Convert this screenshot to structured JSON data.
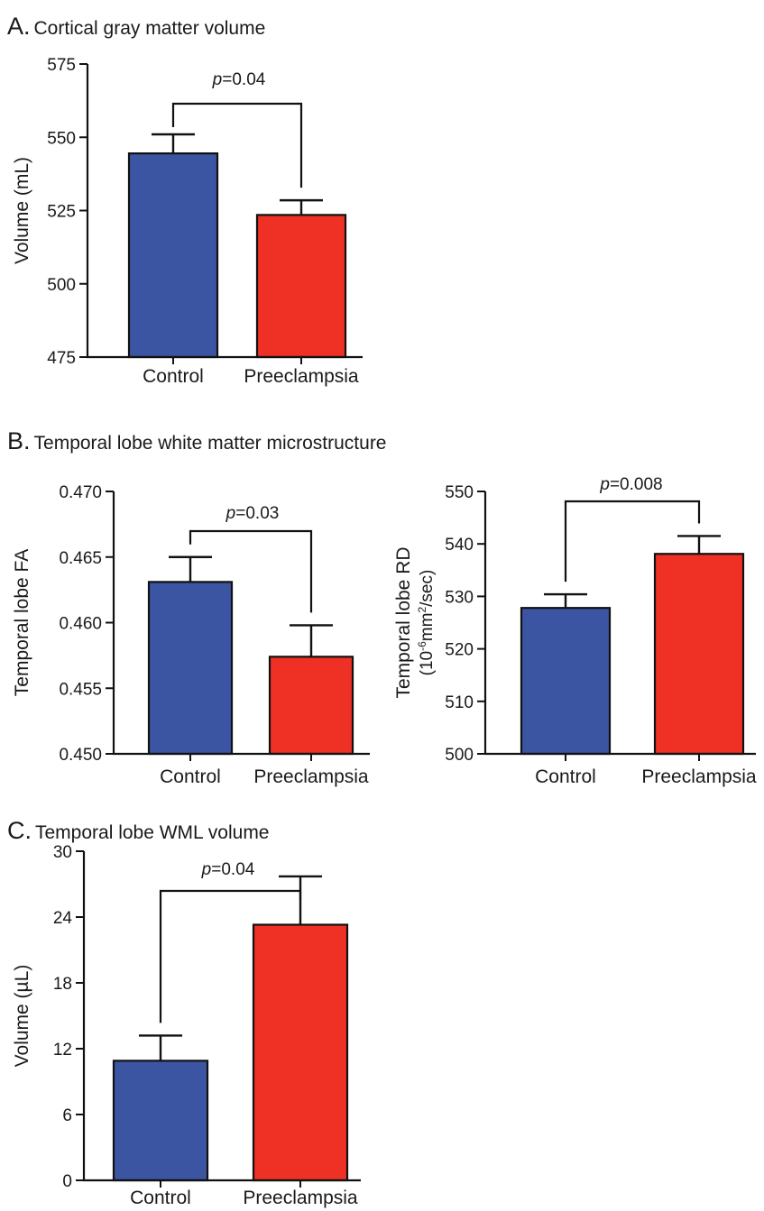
{
  "panels": [
    {
      "letter": "A.",
      "title": "Cortical gray matter volume"
    },
    {
      "letter": "B.",
      "title": "Temporal lobe white matter microstructure"
    },
    {
      "letter": "C.",
      "title": "Temporal lobe WML volume"
    }
  ],
  "colors": {
    "control": "#3b55a3",
    "preeclampsia": "#ee3124",
    "axis": "#1a1a1a"
  },
  "chart_data": [
    {
      "type": "bar",
      "panel": "A.",
      "ylabel": "Volume (mL)",
      "categories": [
        "Control",
        "Preeclampsia"
      ],
      "values": [
        544.5,
        523.5
      ],
      "errors": [
        6.5,
        5.0
      ],
      "ylim": [
        475,
        575
      ],
      "yticks": [
        475,
        500,
        525,
        550,
        575
      ],
      "ytick_labels": [
        "475",
        "500",
        "525",
        "550",
        "575"
      ],
      "annotation": {
        "italic": "p",
        "text": "=0.04"
      }
    },
    {
      "type": "bar",
      "panel": "B.",
      "ylabel": "Temporal lobe FA",
      "categories": [
        "Control",
        "Preeclampsia"
      ],
      "values": [
        0.4631,
        0.4574
      ],
      "errors": [
        0.0019,
        0.0024
      ],
      "ylim": [
        0.45,
        0.47
      ],
      "yticks": [
        0.45,
        0.455,
        0.46,
        0.465,
        0.47
      ],
      "ytick_labels": [
        "0.450",
        "0.455",
        "0.460",
        "0.465",
        "0.470"
      ],
      "annotation": {
        "italic": "p",
        "text": "=0.03"
      }
    },
    {
      "type": "bar",
      "panel": "B.",
      "ylabel": "Temporal lobe RD",
      "ylabel2": "(10-6mm2/sec)",
      "categories": [
        "Control",
        "Preeclampsia"
      ],
      "values": [
        527.8,
        538.1
      ],
      "errors": [
        2.6,
        3.4
      ],
      "ylim": [
        500,
        550
      ],
      "yticks": [
        500,
        510,
        520,
        530,
        540,
        550
      ],
      "ytick_labels": [
        "500",
        "510",
        "520",
        "530",
        "540",
        "550"
      ],
      "annotation": {
        "italic": "p",
        "text": "=0.008"
      }
    },
    {
      "type": "bar",
      "panel": "C.",
      "ylabel": "Volume (µL)",
      "categories": [
        "Control",
        "Preeclampsia"
      ],
      "values": [
        10.9,
        23.3
      ],
      "errors": [
        2.3,
        4.4
      ],
      "ylim": [
        0,
        30
      ],
      "yticks": [
        0,
        6,
        12,
        18,
        24,
        30
      ],
      "ytick_labels": [
        "0",
        "6",
        "12",
        "18",
        "24",
        "30"
      ],
      "annotation": {
        "italic": "p",
        "text": "=0.04"
      }
    }
  ]
}
